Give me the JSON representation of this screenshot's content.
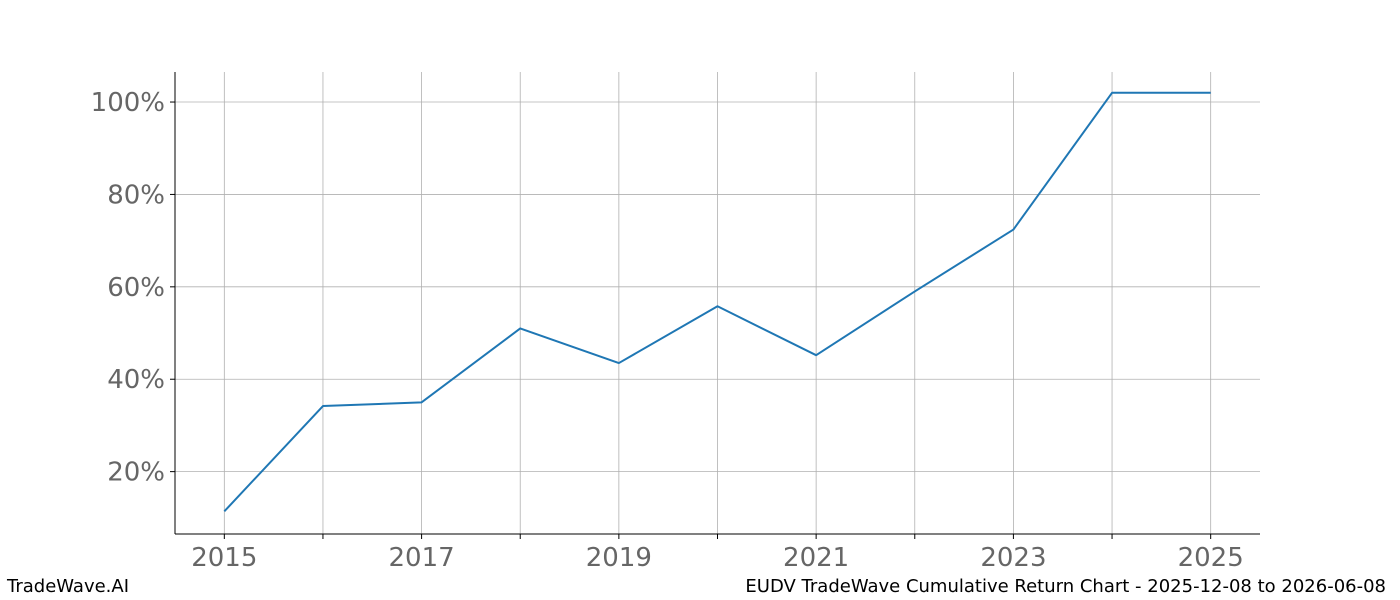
{
  "footer": {
    "brand": "TradeWave.AI",
    "caption": "EUDV TradeWave Cumulative Return Chart - 2025-12-08 to 2026-06-08"
  },
  "chart_data": {
    "type": "line",
    "title": "",
    "xlabel": "",
    "ylabel": "",
    "x": [
      2015,
      2016,
      2017,
      2018,
      2019,
      2020,
      2021,
      2022,
      2023,
      2024,
      2025
    ],
    "series": [
      {
        "color": "#1f77b4",
        "values": [
          11.4,
          34.2,
          35.0,
          51.0,
          43.5,
          55.8,
          45.2,
          59.0,
          72.4,
          102.0,
          102.0
        ]
      }
    ],
    "xlim": [
      2014.5,
      2025.5
    ],
    "ylim": [
      6.5,
      106.5
    ],
    "x_ticks": [
      2015,
      2016,
      2017,
      2018,
      2019,
      2020,
      2021,
      2022,
      2023,
      2024,
      2025
    ],
    "x_tick_labels": [
      "2015",
      "",
      "2017",
      "",
      "2019",
      "",
      "2021",
      "",
      "2023",
      "",
      "2025"
    ],
    "y_ticks": [
      20,
      40,
      60,
      80,
      100
    ],
    "y_tick_labels": [
      "20%",
      "40%",
      "60%",
      "80%",
      "100%"
    ],
    "grid": true,
    "legend": "none"
  }
}
